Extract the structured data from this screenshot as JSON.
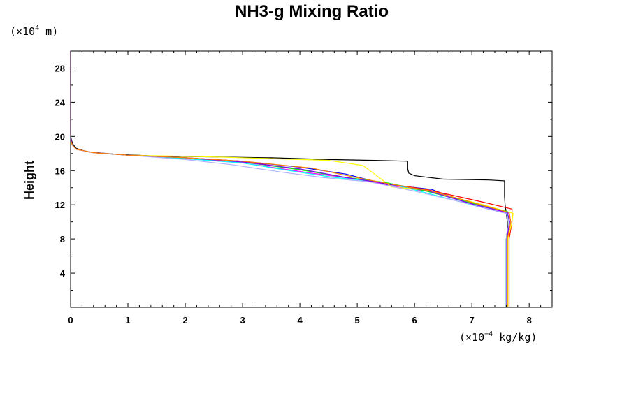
{
  "chart_data": {
    "type": "line",
    "title": "NH3-g Mixing Ratio",
    "ylabel": "Height",
    "y_unit": {
      "prefix": "(×10",
      "exponent": "4",
      "suffix": " m)"
    },
    "x_unit": {
      "prefix": "(×10",
      "exponent": "−4",
      "suffix": " kg/kg)"
    },
    "xlim": [
      0,
      8.4
    ],
    "ylim": [
      0,
      30
    ],
    "x_ticks": [
      "0",
      "1",
      "2",
      "3",
      "4",
      "5",
      "6",
      "7",
      "8"
    ],
    "y_ticks": [
      "4",
      "8",
      "12",
      "16",
      "20",
      "24",
      "28"
    ],
    "grid": false,
    "series": [
      {
        "color": "#000000",
        "points": [
          [
            7.6,
            0
          ],
          [
            7.6,
            8
          ],
          [
            7.62,
            9
          ],
          [
            7.62,
            10
          ],
          [
            7.6,
            11
          ],
          [
            7.58,
            12
          ],
          [
            7.57,
            13
          ],
          [
            7.57,
            14
          ],
          [
            7.57,
            14.8
          ],
          [
            7.3,
            14.9
          ],
          [
            6.5,
            15
          ],
          [
            6.0,
            15.4
          ],
          [
            5.9,
            15.7
          ],
          [
            5.88,
            16.2
          ],
          [
            5.88,
            17.1
          ],
          [
            5.3,
            17.2
          ],
          [
            4.5,
            17.3
          ],
          [
            3.5,
            17.5
          ],
          [
            2.5,
            17.6
          ],
          [
            1.5,
            17.7
          ],
          [
            0.8,
            17.9
          ],
          [
            0.3,
            18.2
          ],
          [
            0.1,
            18.6
          ],
          [
            0.04,
            19.1
          ],
          [
            0.02,
            19.5
          ],
          [
            0,
            20
          ]
        ]
      },
      {
        "color": "#0000ff",
        "points": [
          [
            7.6,
            0
          ],
          [
            7.6,
            8
          ],
          [
            7.65,
            10
          ],
          [
            7.6,
            11
          ],
          [
            7.0,
            12
          ],
          [
            6.3,
            13.8
          ],
          [
            5.5,
            14.4
          ],
          [
            4.8,
            15.6
          ],
          [
            4.0,
            16.4
          ],
          [
            3.0,
            17.1
          ],
          [
            2.0,
            17.5
          ],
          [
            1.0,
            17.8
          ],
          [
            0.4,
            18.1
          ],
          [
            0.1,
            18.5
          ],
          [
            0.03,
            19
          ],
          [
            0,
            19.5
          ]
        ]
      },
      {
        "color": "#ff0000",
        "points": [
          [
            7.65,
            0
          ],
          [
            7.65,
            8
          ],
          [
            7.7,
            10
          ],
          [
            7.7,
            11.5
          ],
          [
            7.2,
            12.3
          ],
          [
            6.2,
            13.8
          ],
          [
            5.5,
            14.5
          ],
          [
            4.9,
            15.1
          ],
          [
            4.1,
            16.0
          ],
          [
            3.0,
            17.1
          ],
          [
            2.0,
            17.5
          ],
          [
            1.0,
            17.8
          ],
          [
            0.4,
            18.1
          ],
          [
            0.1,
            18.5
          ],
          [
            0.03,
            19
          ],
          [
            0,
            19.5
          ]
        ]
      },
      {
        "color": "#ff00ff",
        "points": [
          [
            7.62,
            0
          ],
          [
            7.62,
            8
          ],
          [
            7.68,
            10
          ],
          [
            7.65,
            11
          ],
          [
            7.0,
            12.1
          ],
          [
            6.3,
            13.5
          ],
          [
            5.6,
            14.2
          ],
          [
            5.0,
            15.0
          ],
          [
            4.2,
            15.7
          ],
          [
            3.0,
            16.9
          ],
          [
            2.0,
            17.4
          ],
          [
            1.0,
            17.8
          ],
          [
            0.4,
            18.1
          ],
          [
            0.1,
            18.5
          ],
          [
            0.03,
            19
          ],
          [
            0.01,
            19.5
          ],
          [
            0,
            20
          ],
          [
            0,
            30
          ]
        ]
      },
      {
        "color": "#00ffff",
        "points": [
          [
            7.6,
            0
          ],
          [
            7.6,
            8
          ],
          [
            7.66,
            10
          ],
          [
            7.6,
            11.2
          ],
          [
            7.0,
            12.0
          ],
          [
            6.2,
            13.4
          ],
          [
            5.5,
            14.6
          ],
          [
            4.6,
            15.2
          ],
          [
            4.0,
            15.8
          ],
          [
            3.0,
            16.9
          ],
          [
            2.0,
            17.4
          ],
          [
            1.0,
            17.8
          ],
          [
            0.4,
            18.1
          ],
          [
            0.1,
            18.5
          ],
          [
            0.03,
            19
          ],
          [
            0,
            19.5
          ]
        ]
      },
      {
        "color": "#ffff00",
        "points": [
          [
            7.63,
            0
          ],
          [
            7.63,
            8
          ],
          [
            7.7,
            10
          ],
          [
            7.72,
            11.0
          ],
          [
            7.2,
            12.0
          ],
          [
            6.2,
            13.7
          ],
          [
            5.6,
            14.1
          ],
          [
            5.3,
            15.6
          ],
          [
            5.1,
            16.6
          ],
          [
            4.5,
            17.2
          ],
          [
            3.5,
            17.4
          ],
          [
            2.5,
            17.6
          ],
          [
            1.0,
            17.8
          ],
          [
            0.4,
            18.1
          ],
          [
            0.1,
            18.5
          ],
          [
            0.03,
            19
          ],
          [
            0,
            19.5
          ]
        ]
      },
      {
        "color": "#00ff00",
        "points": [
          [
            7.6,
            0
          ],
          [
            7.6,
            8
          ],
          [
            7.65,
            10
          ],
          [
            7.62,
            11.2
          ],
          [
            7.0,
            12.2
          ],
          [
            6.2,
            13.6
          ],
          [
            5.5,
            14.6
          ],
          [
            4.7,
            15.3
          ],
          [
            4.0,
            16.1
          ],
          [
            3.0,
            17.0
          ],
          [
            2.0,
            17.5
          ],
          [
            1.0,
            17.8
          ],
          [
            0.4,
            18.1
          ],
          [
            0.1,
            18.5
          ],
          [
            0.03,
            19
          ],
          [
            0,
            19.5
          ]
        ]
      },
      {
        "color": "#b0b0ff",
        "points": [
          [
            7.6,
            0
          ],
          [
            7.6,
            8
          ],
          [
            7.65,
            10
          ],
          [
            7.6,
            11.0
          ],
          [
            6.9,
            12.2
          ],
          [
            6.0,
            13.6
          ],
          [
            5.2,
            14.7
          ],
          [
            4.4,
            15.2
          ],
          [
            3.7,
            15.8
          ],
          [
            2.8,
            16.7
          ],
          [
            2.0,
            17.3
          ],
          [
            1.0,
            17.8
          ],
          [
            0.4,
            18.1
          ],
          [
            0.1,
            18.5
          ],
          [
            0.03,
            19
          ],
          [
            0,
            19.5
          ]
        ]
      },
      {
        "color": "#8000ff",
        "points": [
          [
            7.61,
            0
          ],
          [
            7.61,
            8
          ],
          [
            7.66,
            10
          ],
          [
            7.62,
            11.1
          ],
          [
            7.0,
            12.1
          ],
          [
            6.2,
            13.7
          ],
          [
            5.5,
            14.5
          ],
          [
            4.8,
            15.2
          ],
          [
            4.0,
            16.2
          ],
          [
            3.0,
            17.0
          ],
          [
            2.0,
            17.5
          ],
          [
            1.0,
            17.8
          ],
          [
            0.4,
            18.1
          ],
          [
            0.1,
            18.5
          ],
          [
            0.03,
            19
          ],
          [
            0,
            19.5
          ]
        ]
      },
      {
        "color": "#ff8000",
        "points": [
          [
            7.62,
            0
          ],
          [
            7.62,
            8
          ],
          [
            7.68,
            10
          ],
          [
            7.65,
            11.1
          ],
          [
            7.1,
            12.1
          ],
          [
            6.3,
            13.6
          ],
          [
            5.6,
            14.4
          ],
          [
            4.9,
            15.3
          ],
          [
            4.2,
            16.3
          ],
          [
            3.0,
            17.1
          ],
          [
            2.0,
            17.5
          ],
          [
            1.0,
            17.8
          ],
          [
            0.4,
            18.1
          ],
          [
            0.1,
            18.5
          ],
          [
            0.03,
            19
          ],
          [
            0,
            19.5
          ]
        ]
      }
    ]
  }
}
